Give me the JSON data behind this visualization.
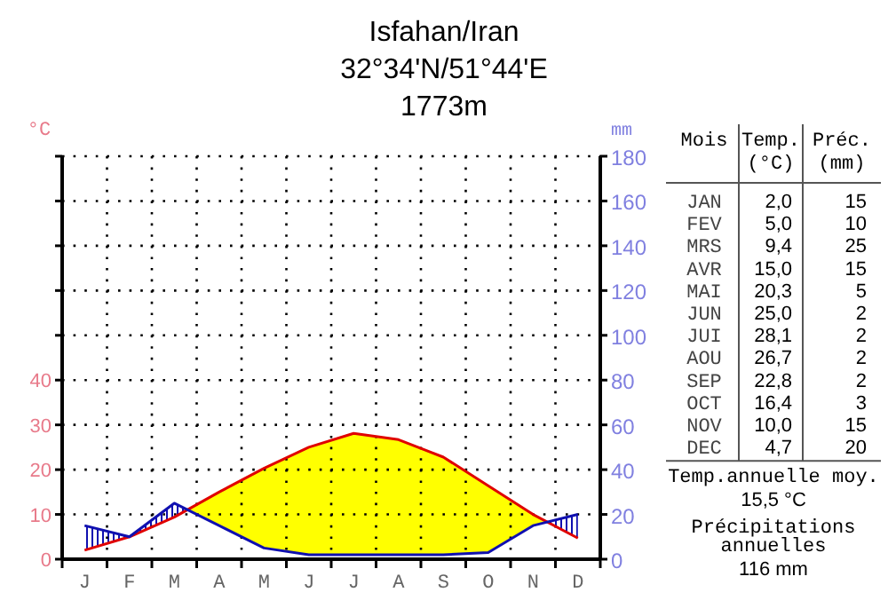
{
  "chart_data": {
    "type": "line",
    "title": "Isfahan/Iran",
    "subtitle": "32°34'N/51°44'E\n1773m",
    "ylabel": "°C",
    "y2label": "mm",
    "categories": [
      "J",
      "F",
      "M",
      "A",
      "M",
      "J",
      "J",
      "A",
      "S",
      "O",
      "N",
      "D"
    ],
    "series": [
      {
        "color": "#e00000",
        "values": [
          2.0,
          5.0,
          9.4,
          15.0,
          20.3,
          25.0,
          28.1,
          26.7,
          22.8,
          16.4,
          10.0,
          4.7
        ]
      },
      {
        "color": "#1010b0",
        "axis": "y2",
        "values": [
          15,
          10,
          25,
          15,
          5,
          2,
          2,
          2,
          2,
          3,
          15,
          20
        ]
      }
    ],
    "ylim": [
      0,
      90
    ],
    "yticks": [
      0,
      10,
      20,
      30,
      40
    ],
    "y2lim": [
      0,
      180
    ],
    "y2ticks": [
      0,
      20,
      40,
      60,
      80,
      100,
      120,
      140,
      160,
      180
    ],
    "grid": true,
    "marker": "none",
    "line_style": "solid",
    "annotations": [
      "Mois",
      "Temp. (°C)",
      "Préc. (mm)",
      "JAN",
      "2,0",
      "15",
      "FEV",
      "5,0",
      "10",
      "MRS",
      "9,4",
      "25",
      "AVR",
      "15,0",
      "15",
      "MAI",
      "20,3",
      "5",
      "JUN",
      "25,0",
      "2",
      "JUI",
      "28,1",
      "2",
      "AOU",
      "26,7",
      "2",
      "SEP",
      "22,8",
      "2",
      "OCT",
      "16,4",
      "3",
      "NOV",
      "10,0",
      "15",
      "DEC",
      "4,7",
      "20",
      "Temp.annuelle moy.",
      "15,5 °C",
      "Précipitations annuelles",
      "116 mm"
    ]
  }
}
